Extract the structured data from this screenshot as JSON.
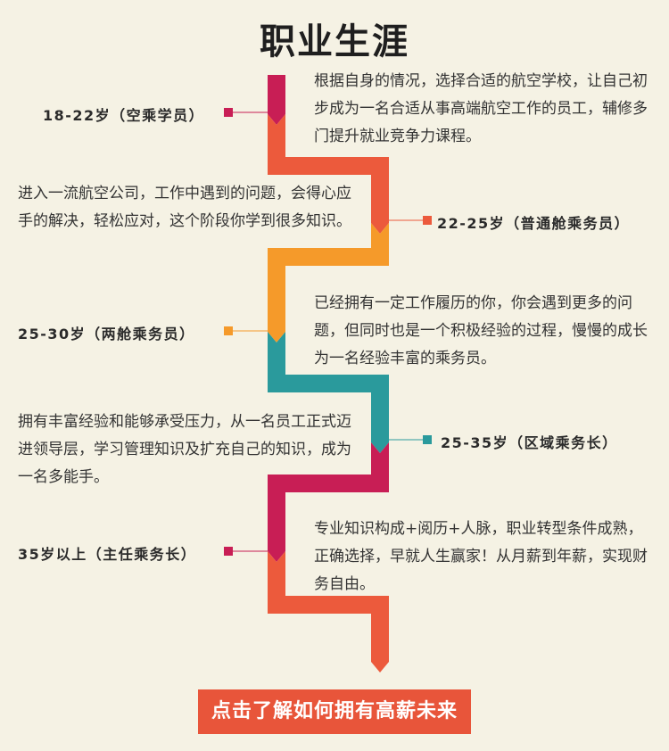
{
  "title": "职业生涯",
  "stages": [
    {
      "label": "18-22岁（空乘学员）",
      "description": "根据自身的情况，选择合适的航空学校，让自己初步成为一名合适从事高端航空工作的员工，辅修多门提升就业竞争力课程。",
      "color": "#c81e55"
    },
    {
      "label": "22-25岁（普通舱乘务员）",
      "description": "进入一流航空公司，工作中遇到的问题，会得心应手的解决，轻松应对，这个阶段你学到很多知识。",
      "color": "#e8553a"
    },
    {
      "label": "25-30岁（两舱乘务员）",
      "description": "已经拥有一定工作履历的你，你会遇到更多的问题，但同时也是一个积极经验的过程，慢慢的成长为一名经验丰富的乘务员。",
      "color": "#f59a2a"
    },
    {
      "label": "25-35岁（区域乘务长）",
      "description": "拥有丰富经验和能够承受压力，从一名员工正式迈进领导层，学习管理知识及扩充自己的知识，成为一名多能手。",
      "color": "#2a9a9c"
    },
    {
      "label": "35岁以上（主任乘务长）",
      "description": "专业知识构成+阅历+人脉，职业转型条件成熟，正确选择，早就人生赢家！从月薪到年薪，实现财务自由。",
      "color": "#c81e55"
    }
  ],
  "cta_label": "点击了解如何拥有高薪未来"
}
